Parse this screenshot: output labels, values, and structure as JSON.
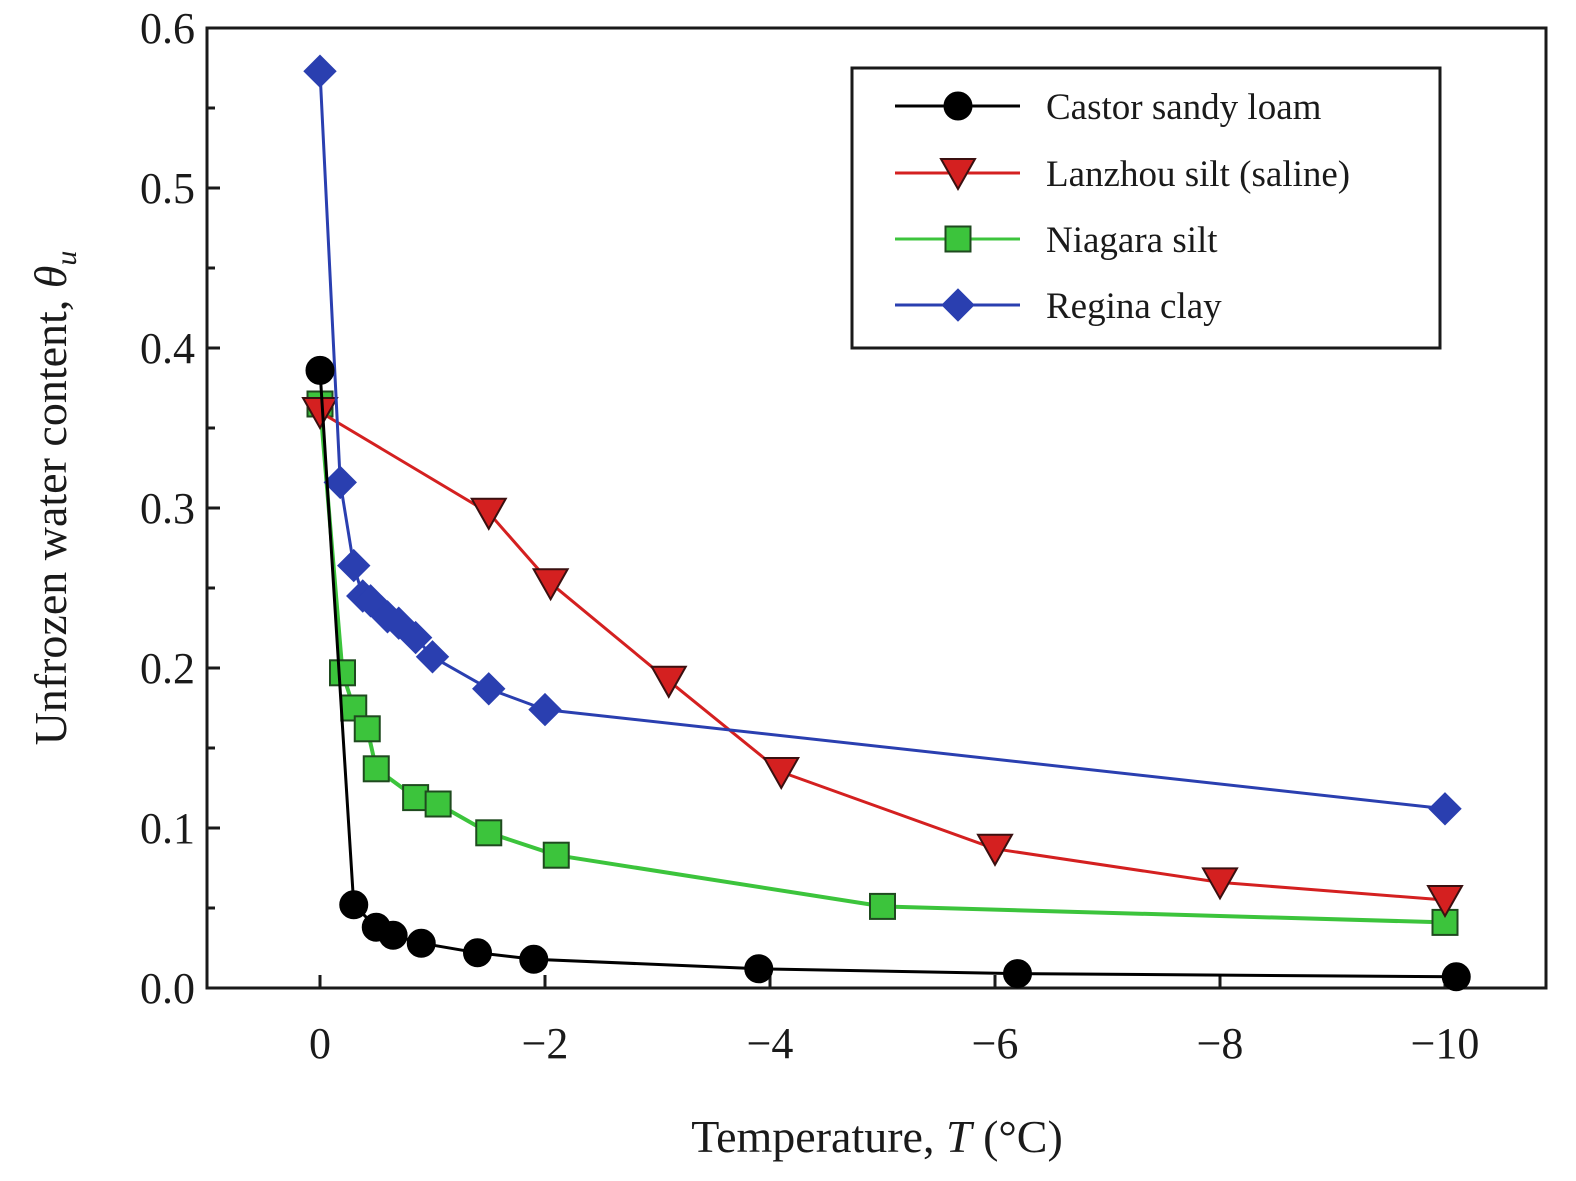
{
  "chart_data": {
    "type": "line",
    "title": "",
    "xlabel": "Temperature, ",
    "xlabel_var": "T",
    "xlabel_unit": " (°C)",
    "ylabel": "Unfrozen water content, ",
    "ylabel_var": "θ",
    "ylabel_sub": "u",
    "xlim": [
      0.5,
      -11
    ],
    "ylim": [
      0,
      0.6
    ],
    "x_ticks": [
      0,
      -2,
      -4,
      -6,
      -8,
      -10
    ],
    "x_tick_labels": [
      "0",
      "−2",
      "−4",
      "−6",
      "−8",
      "−10"
    ],
    "y_ticks": [
      0,
      0.1,
      0.2,
      0.3,
      0.4,
      0.5,
      0.6
    ],
    "y_tick_labels": [
      "0.0",
      "0.1",
      "0.2",
      "0.3",
      "0.4",
      "0.5",
      "0.6"
    ],
    "y_minor_ticks": [
      0.05,
      0.15,
      0.25,
      0.35,
      0.45,
      0.55
    ],
    "grid": false,
    "legend_position": "top-right",
    "series": [
      {
        "name": "Castor sandy loam",
        "color": "#000000",
        "marker": "circle",
        "x": [
          0,
          -0.3,
          -0.5,
          -0.65,
          -0.9,
          -1.4,
          -1.9,
          -3.9,
          -6.2,
          -10.1
        ],
        "y": [
          0.386,
          0.052,
          0.038,
          0.033,
          0.028,
          0.022,
          0.018,
          0.012,
          0.009,
          0.007
        ]
      },
      {
        "name": "Lanzhou silt (saline)",
        "color": "#d42020",
        "marker": "triangle-down",
        "x": [
          0,
          -1.5,
          -2.05,
          -3.1,
          -4.1,
          -6.0,
          -8.0,
          -10.0
        ],
        "y": [
          0.36,
          0.297,
          0.253,
          0.192,
          0.135,
          0.087,
          0.066,
          0.055
        ]
      },
      {
        "name": "Niagara silt",
        "color": "#3cc43c",
        "marker": "square",
        "x": [
          0,
          -0.2,
          -0.3,
          -0.42,
          -0.5,
          -0.85,
          -1.05,
          -1.5,
          -2.1,
          -5.0,
          -10.0
        ],
        "y": [
          0.365,
          0.197,
          0.175,
          0.162,
          0.137,
          0.119,
          0.115,
          0.097,
          0.083,
          0.051,
          0.041
        ]
      },
      {
        "name": "Regina clay",
        "color": "#2a3fb0",
        "marker": "diamond",
        "x": [
          0,
          -0.18,
          -0.3,
          -0.38,
          -0.45,
          -0.6,
          -0.7,
          -0.85,
          -1.0,
          -1.5,
          -2.0,
          -10.0
        ],
        "y": [
          0.573,
          0.316,
          0.264,
          0.245,
          0.242,
          0.232,
          0.228,
          0.219,
          0.207,
          0.187,
          0.174,
          0.112
        ]
      }
    ]
  }
}
